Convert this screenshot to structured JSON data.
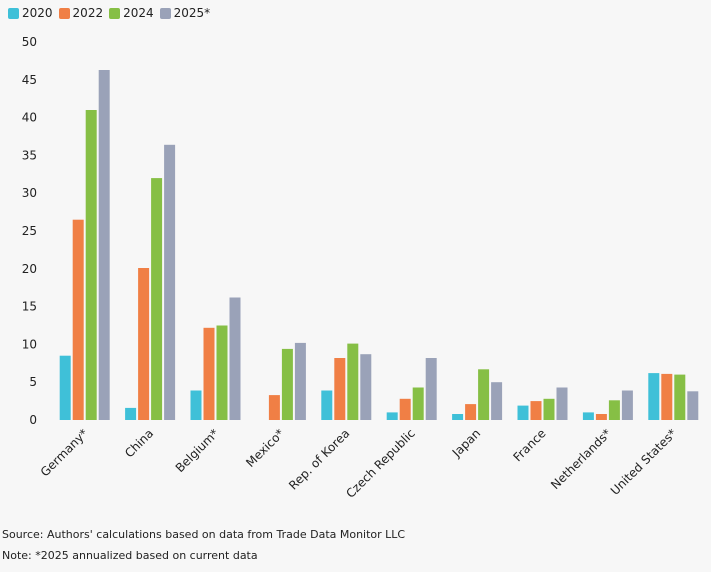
{
  "chart_data": {
    "type": "bar",
    "title": "",
    "xlabel": "",
    "ylabel": "",
    "ylim": [
      0,
      50
    ],
    "yticks": [
      0,
      5,
      10,
      15,
      20,
      25,
      30,
      35,
      40,
      45,
      50
    ],
    "grid": false,
    "legend_position": "top-left",
    "categories": [
      "Germany*",
      "China",
      "Belgium*",
      "Mexico*",
      "Rep. of Korea",
      "Czech Republic",
      "Japan",
      "France",
      "Netherlands*",
      "United States*"
    ],
    "series": [
      {
        "name": "2020",
        "color": "#3fc0d8",
        "values": [
          8.5,
          1.6,
          3.9,
          0,
          3.9,
          1.0,
          0.8,
          1.9,
          1.0,
          6.2
        ]
      },
      {
        "name": "2022",
        "color": "#f07f45",
        "values": [
          26.5,
          20.1,
          12.2,
          3.3,
          8.2,
          2.8,
          2.1,
          2.5,
          0.8,
          6.1
        ]
      },
      {
        "name": "2024",
        "color": "#86bf45",
        "values": [
          41.0,
          32.0,
          12.5,
          9.4,
          10.1,
          4.3,
          6.7,
          2.8,
          2.6,
          6.0
        ]
      },
      {
        "name": "2025*",
        "color": "#9aa2b8",
        "values": [
          46.3,
          36.4,
          16.2,
          10.2,
          8.7,
          8.2,
          5.0,
          4.3,
          3.9,
          3.8
        ]
      }
    ]
  },
  "footer": {
    "source": "Source: Authors' calculations based on data from Trade Data Monitor LLC",
    "note": "Note: *2025 annualized based on current data"
  }
}
